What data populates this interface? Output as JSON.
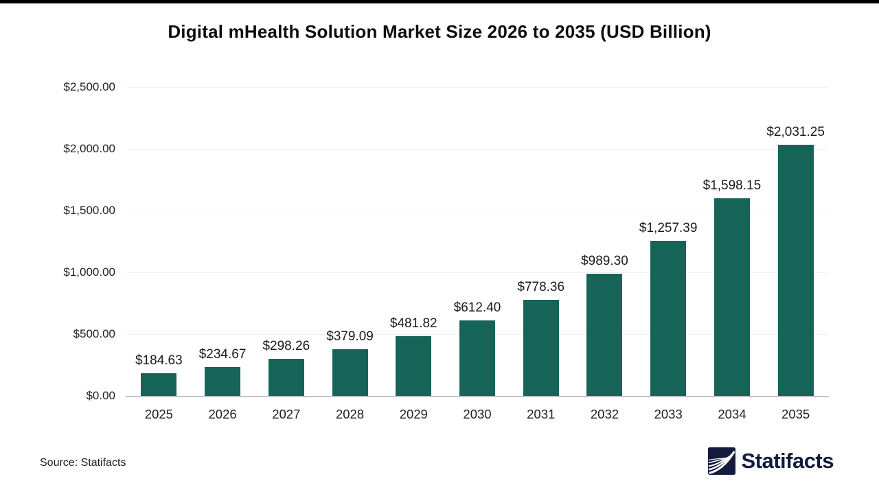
{
  "title_note": "single bar chart figure",
  "source": "Source: Statifacts",
  "brand": {
    "name": "Statifacts",
    "icon": "waves-square-icon"
  },
  "colors": {
    "bar": "#166458",
    "grid": "#f0f0f0",
    "baseline": "#c4c4c4",
    "text": "#1a1a1a",
    "brand_navy": "#141b3d",
    "top_border": "#000000"
  },
  "chart_data": {
    "type": "bar",
    "title": "Digital mHealth Solution Market Size 2026 to 2035 (USD Billion)",
    "xlabel": "",
    "ylabel": "",
    "categories": [
      "2025",
      "2026",
      "2027",
      "2028",
      "2029",
      "2030",
      "2031",
      "2032",
      "2033",
      "2034",
      "2035"
    ],
    "values": [
      184.63,
      234.67,
      298.26,
      379.09,
      481.82,
      612.4,
      778.36,
      989.3,
      1257.39,
      1598.15,
      2031.25
    ],
    "value_labels": [
      "$184.63",
      "$234.67",
      "$298.26",
      "$379.09",
      "$481.82",
      "$612.40",
      "$778.36",
      "$989.30",
      "$1,257.39",
      "$1,598.15",
      "$2,031.25"
    ],
    "ylim": [
      0,
      2500
    ],
    "yticks": {
      "values": [
        0,
        500,
        1000,
        1500,
        2000,
        2500
      ],
      "labels": [
        "$0.00",
        "$500.00",
        "$1,000.00",
        "$1,500.00",
        "$2,000.00",
        "$2,500.00"
      ]
    },
    "grid": "horizontal",
    "legend": "none",
    "bar_color": "#166458"
  }
}
